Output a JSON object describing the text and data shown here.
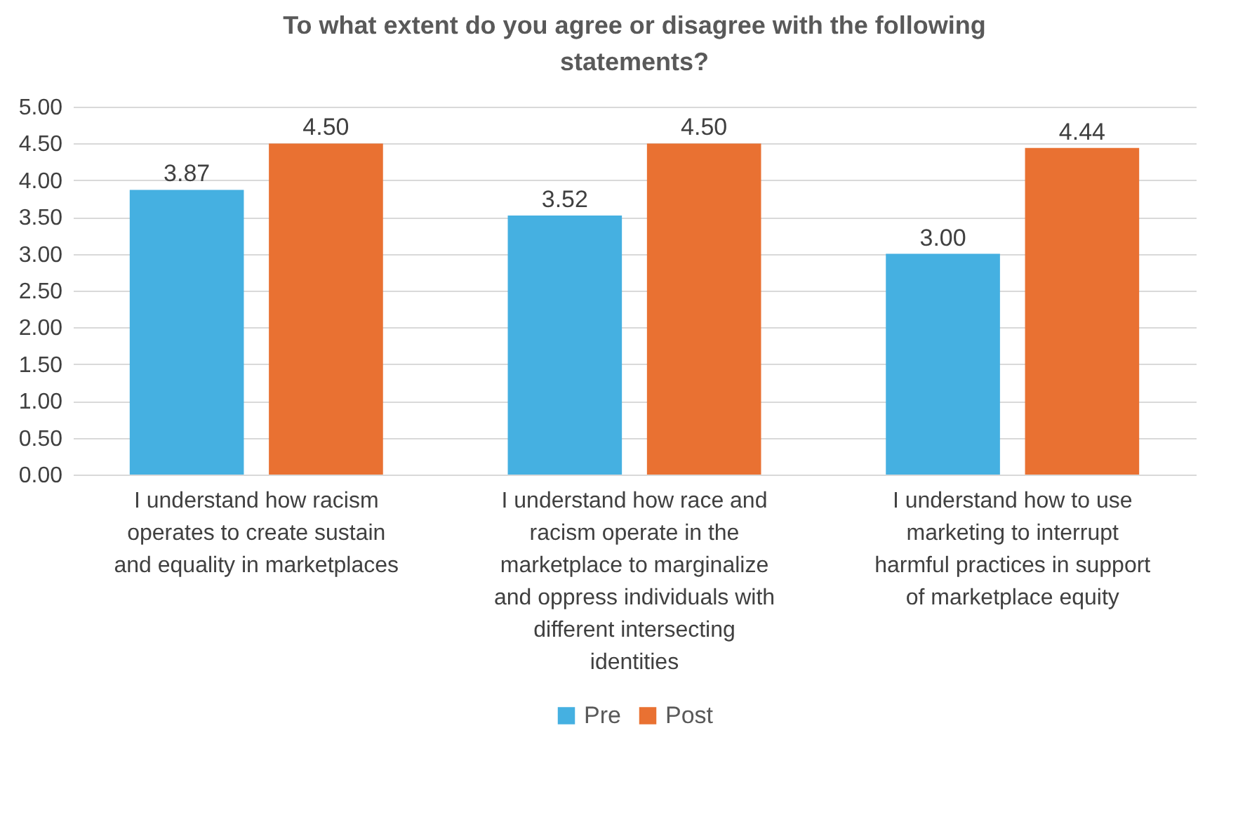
{
  "chart_data": {
    "type": "bar",
    "title": "To what extent do you agree or disagree with the following statements?",
    "categories": [
      "I understand how racism operates to create sustain and equality in marketplaces",
      "I understand how race and racism operate in the marketplace to marginalize and oppress individuals with different intersecting identities",
      "I understand how to use marketing to interrupt harmful practices in support of marketplace equity"
    ],
    "series": [
      {
        "name": "Pre",
        "color": "#45b0e1",
        "values": [
          3.87,
          3.52,
          3.0
        ],
        "value_labels": [
          "3.87",
          "3.52",
          "3.00"
        ]
      },
      {
        "name": "Post",
        "color": "#e97132",
        "values": [
          4.5,
          4.5,
          4.44
        ],
        "value_labels": [
          "4.50",
          "4.50",
          "4.44"
        ]
      }
    ],
    "ylim": [
      0,
      5
    ],
    "yticks": [
      {
        "value": 0,
        "label": "0.00"
      },
      {
        "value": 0.5,
        "label": "0.50"
      },
      {
        "value": 1,
        "label": "1.00"
      },
      {
        "value": 1.5,
        "label": "1.50"
      },
      {
        "value": 2,
        "label": "2.00"
      },
      {
        "value": 2.5,
        "label": "2.50"
      },
      {
        "value": 3,
        "label": "3.00"
      },
      {
        "value": 3.5,
        "label": "3.50"
      },
      {
        "value": 4,
        "label": "4.00"
      },
      {
        "value": 4.5,
        "label": "4.50"
      },
      {
        "value": 5,
        "label": "5.00"
      }
    ],
    "grid": "y",
    "legend": "bottom"
  }
}
